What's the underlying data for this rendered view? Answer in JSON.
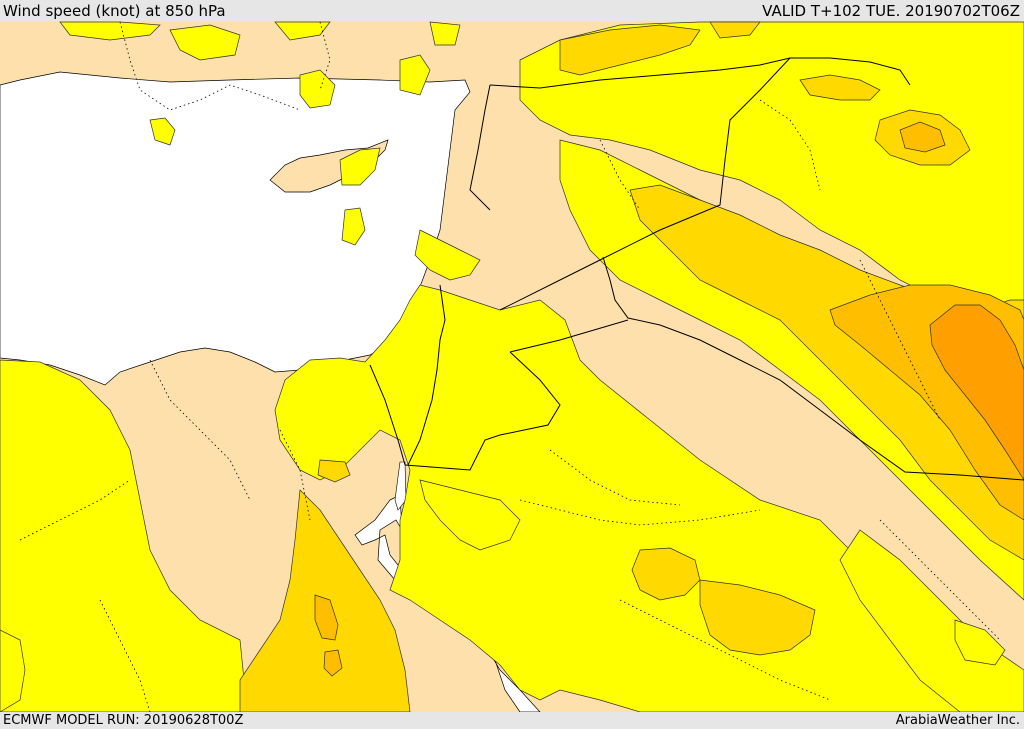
{
  "header": {
    "title": "Wind speed (knot) at 850 hPa",
    "valid": "VALID T+102 TUE. 20190702T06Z"
  },
  "footer": {
    "model_run": "ECMWF MODEL RUN: 20190628T00Z",
    "credit": "ArabiaWeather Inc."
  },
  "colors": {
    "sea": "#ffffff",
    "band_low": "#fde0ab",
    "band_1": "#ffff00",
    "band_2": "#ffd900",
    "band_3": "#ffbf00",
    "band_4": "#ffa000",
    "contour": "#000000"
  }
}
